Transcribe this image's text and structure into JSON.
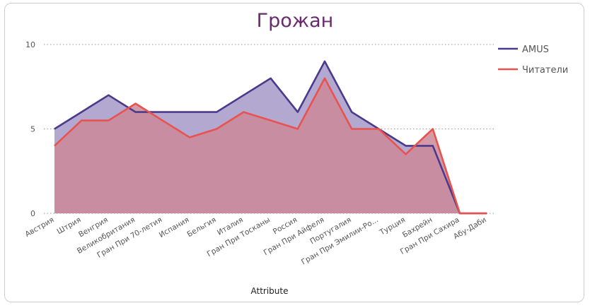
{
  "chart_data": {
    "type": "area",
    "title": "Грожан",
    "xlabel": "Attribute",
    "ylabel": "",
    "ylim": [
      0,
      10
    ],
    "yticks": [
      0,
      5,
      10
    ],
    "grid": "horizontal dotted",
    "legend_position": "right",
    "categories": [
      "Австрия",
      "Штрия",
      "Венгрия",
      "Великобритания",
      "Гран При 70-летия",
      "Испания",
      "Бельгия",
      "Италия",
      "Гран При Тосканы",
      "Россия",
      "Гран При Айфеля",
      "Португалия",
      "Гран При Эмилии-Ро...",
      "Турция",
      "Бахрейн",
      "Гран При Сахира",
      "Абу-Даби"
    ],
    "series": [
      {
        "name": "AMUS",
        "color": "#4b3a8c",
        "fill": "#b3a8d0",
        "values": [
          5,
          6,
          7,
          6,
          6,
          6,
          6,
          7,
          8,
          6,
          9,
          6,
          5,
          4,
          4,
          0,
          0
        ]
      },
      {
        "name": "Читатели",
        "color": "#e8534f",
        "fill": "#cc8899",
        "values": [
          4,
          5.5,
          5.5,
          6.5,
          5.5,
          4.5,
          5,
          6,
          5.5,
          5,
          8,
          5,
          5,
          3.5,
          5,
          0,
          0
        ]
      }
    ]
  }
}
